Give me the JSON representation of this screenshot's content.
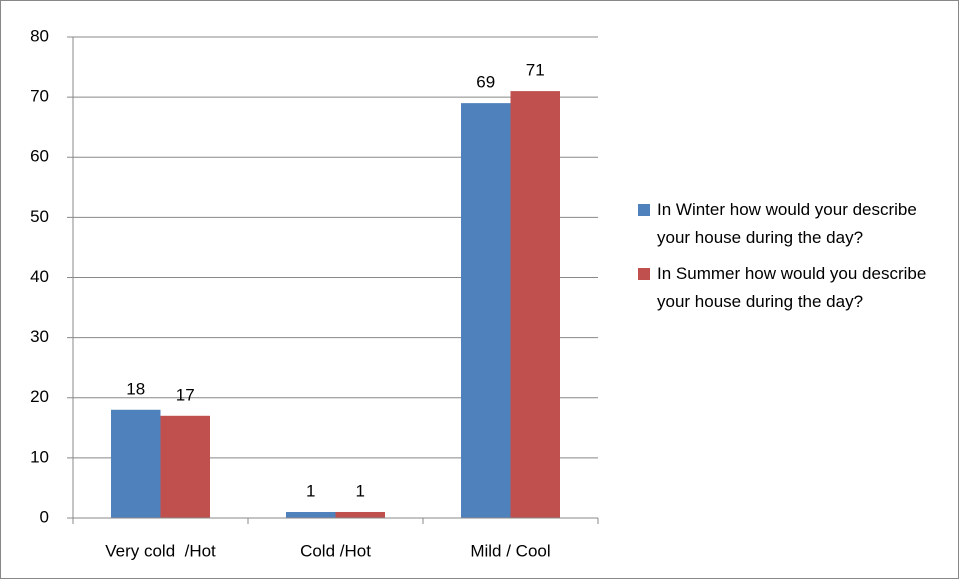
{
  "chart_data": {
    "type": "bar",
    "categories": [
      "Very cold  /Hot",
      "Cold /Hot",
      "Mild / Cool"
    ],
    "series": [
      {
        "name": "In Winter how would your describe your house during the day?",
        "color": "#4f81bd",
        "values": [
          18,
          1,
          69
        ]
      },
      {
        "name": "In Summer how would you describe your house during the day?",
        "color": "#c0504d",
        "values": [
          17,
          1,
          71
        ]
      }
    ],
    "ylim": [
      0,
      80
    ],
    "yticks": [
      0,
      10,
      20,
      30,
      40,
      50,
      60,
      70,
      80
    ],
    "grid": true,
    "legend": "right"
  }
}
